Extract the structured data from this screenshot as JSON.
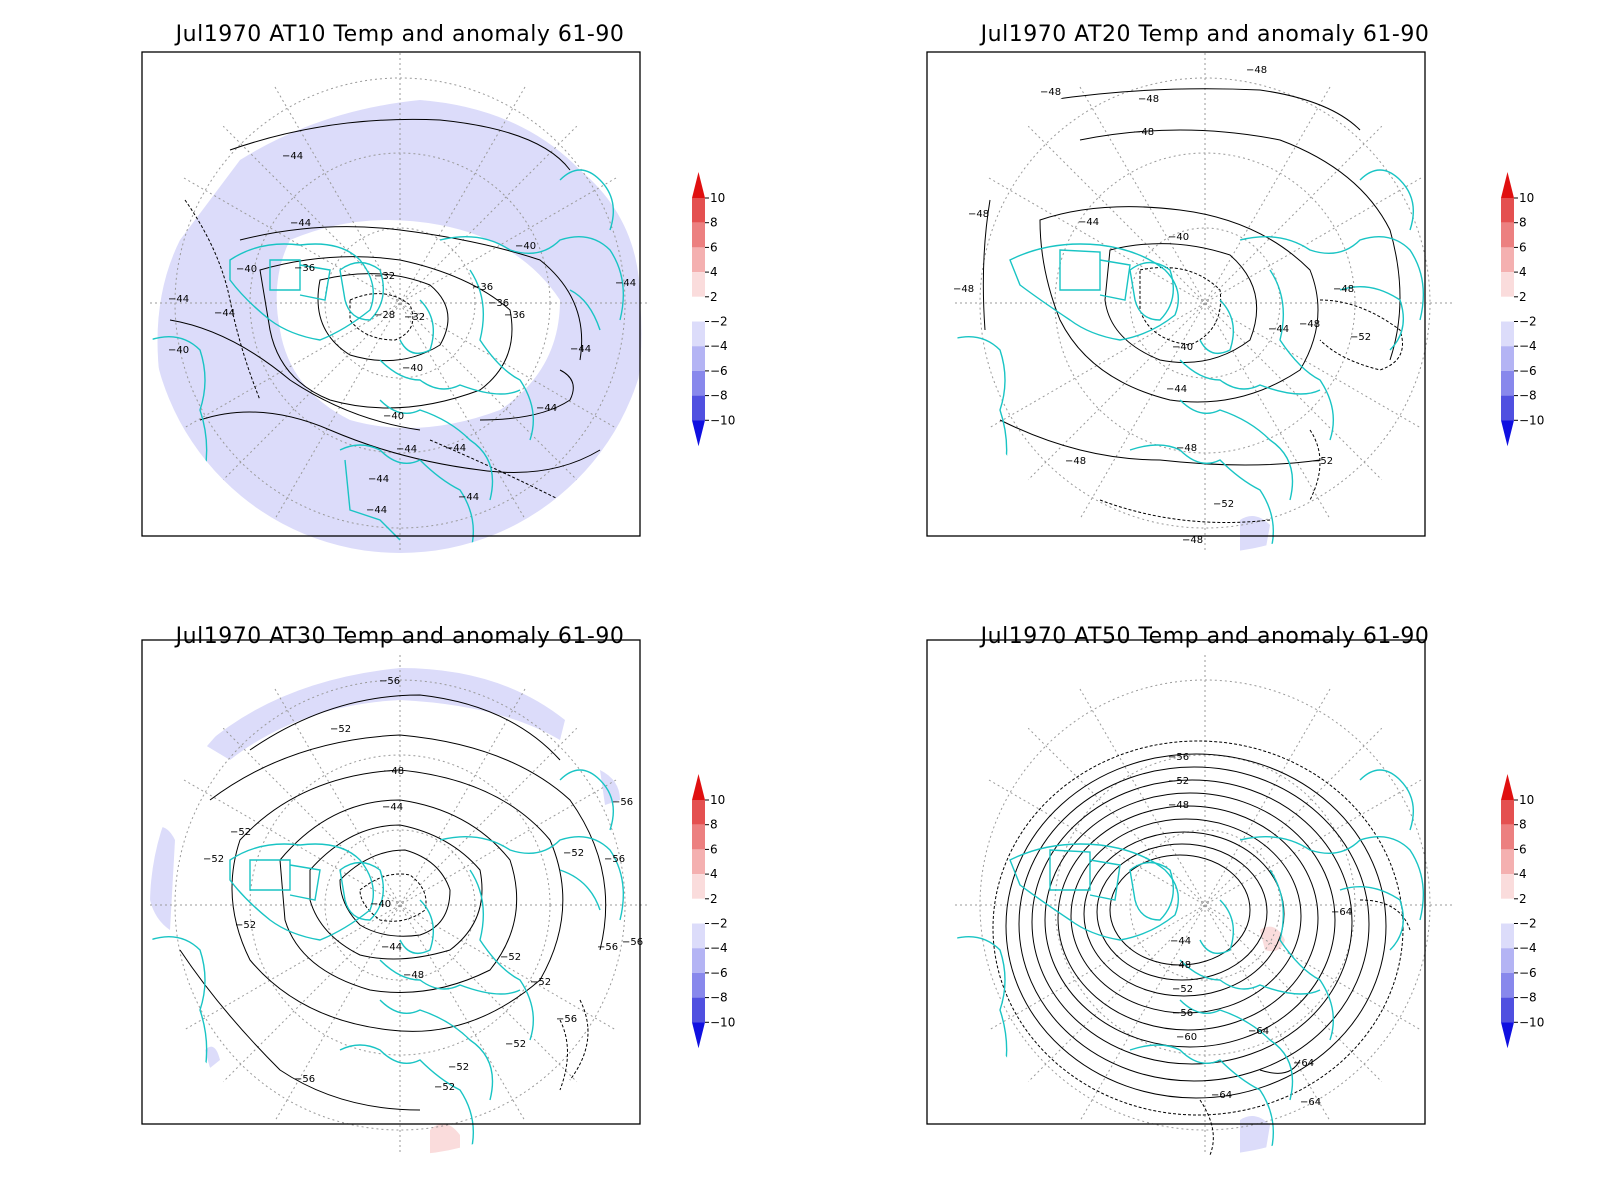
{
  "colors": {
    "land_outline": "#19C4C4",
    "contour": "#000000",
    "grid": "#9a9a9a",
    "anom_neg_2_4": "#dcdcfa",
    "anom_neg_4_6": "#b4b4f4",
    "anom_neg_6_8": "#8888ec",
    "anom_neg_8_10": "#5050e0",
    "anom_neg_lt_10": "#1010e0",
    "anom_pos_2_4": "#fadcdc",
    "anom_pos_4_6": "#f4b0b0",
    "anom_pos_6_8": "#ec8080",
    "anom_pos_8_10": "#e45050",
    "anom_pos_gt_10": "#e01010"
  },
  "colorbar": {
    "ticks": [
      "10",
      "8",
      "6",
      "4",
      "2",
      "−2",
      "−4",
      "−6",
      "−8",
      "−10"
    ]
  },
  "panels": [
    {
      "title": "Jul1970 AT10 Temp and anomaly 61-90",
      "contour_labels": [
        "−44",
        "−44",
        "−40",
        "−36",
        "−32",
        "−36",
        "−28",
        "−32",
        "−40",
        "−36",
        "−36",
        "−44",
        "−44",
        "−44",
        "−40",
        "−44",
        "−40",
        "−44",
        "−44",
        "−44",
        "−44",
        "−44",
        "−44",
        "−40"
      ]
    },
    {
      "title": "Jul1970 AT20 Temp and anomaly 61-90",
      "contour_labels": [
        "−48",
        "−48",
        "−48",
        "−48",
        "−48",
        "−44",
        "−40",
        "−48",
        "−44",
        "−40",
        "−44",
        "−48",
        "−52",
        "−48",
        "−48",
        "−48",
        "−52",
        "−52",
        "−48"
      ]
    },
    {
      "title": "Jul1970 AT30 Temp and anomaly 61-90",
      "contour_labels": [
        "−56",
        "−52",
        "−48",
        "−44",
        "−52",
        "−52",
        "−52",
        "−40",
        "−44",
        "−48",
        "−56",
        "−52",
        "−56",
        "−56",
        "−56",
        "−52",
        "−52",
        "−56",
        "−52",
        "−52",
        "−56",
        "−52"
      ]
    },
    {
      "title": "Jul1970 AT50 Temp and anomaly 61-90",
      "contour_labels": [
        "−56",
        "−52",
        "−48",
        "−44",
        "−48",
        "−52",
        "−56",
        "−60",
        "−64",
        "−64",
        "−64",
        "−64",
        "−64"
      ]
    }
  ]
}
